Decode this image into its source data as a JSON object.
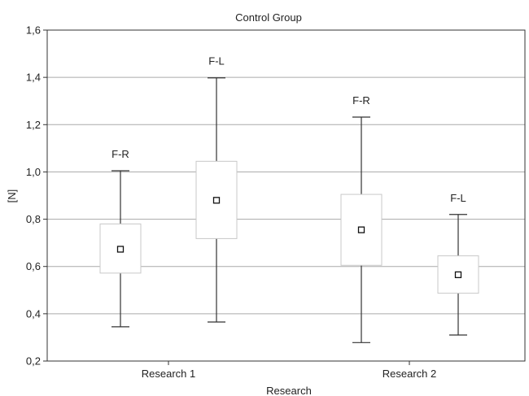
{
  "chart_data": {
    "type": "box",
    "title": "Control Group",
    "xlabel": "Research",
    "ylabel": "[N]",
    "ylim": [
      0.2,
      1.6
    ],
    "yticks": [
      "0,2",
      "0,4",
      "0,6",
      "0,8",
      "1,0",
      "1,2",
      "1,4",
      "1,6"
    ],
    "grid": true,
    "categories": [
      "Research 1",
      "Research 2"
    ],
    "boxes": [
      {
        "category": "Research 1",
        "label": "F-R",
        "whisker_low": 0.345,
        "box_low": 0.572,
        "mean": 0.673,
        "box_high": 0.78,
        "whisker_high": 1.005
      },
      {
        "category": "Research 1",
        "label": "F-L",
        "whisker_low": 0.365,
        "box_low": 0.718,
        "mean": 0.88,
        "box_high": 1.045,
        "whisker_high": 1.398
      },
      {
        "category": "Research 2",
        "label": "F-R",
        "whisker_low": 0.278,
        "box_low": 0.605,
        "mean": 0.755,
        "box_high": 0.905,
        "whisker_high": 1.232
      },
      {
        "category": "Research 2",
        "label": "F-L",
        "whisker_low": 0.31,
        "box_low": 0.487,
        "mean": 0.565,
        "box_high": 0.645,
        "whisker_high": 0.82
      }
    ],
    "colors": {
      "box_fill": "#ffffff",
      "box_stroke": "#c8c8c8",
      "whisker": "#333333",
      "grid": "#aaaaaa",
      "axis": "#333333"
    }
  }
}
